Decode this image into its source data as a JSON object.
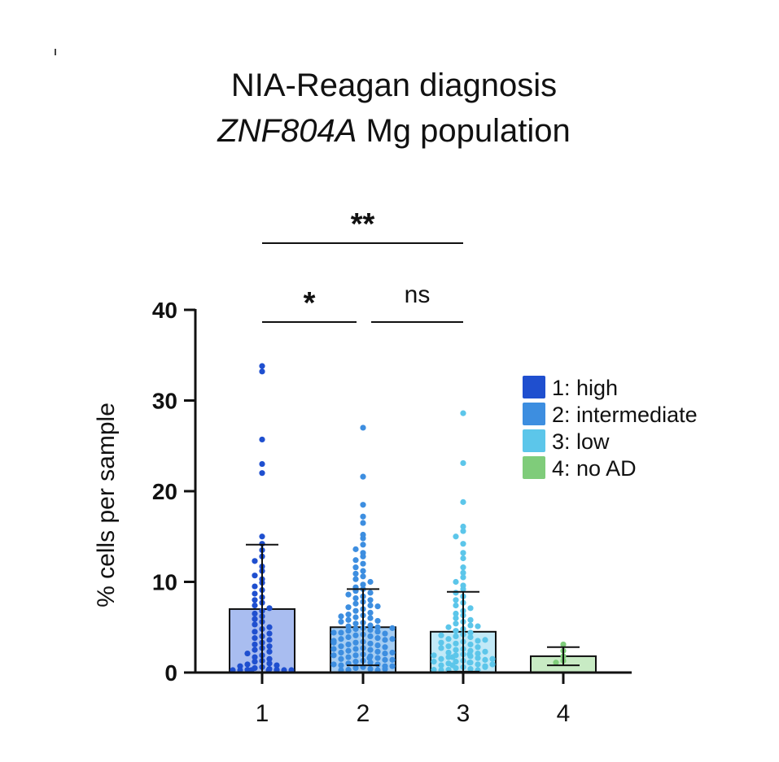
{
  "chart_data": {
    "type": "bar",
    "title_line1": "NIA-Reagan diagnosis",
    "title_gene": "ZNF804A",
    "title_rest": " Mg population",
    "ylabel": "% cells per sample",
    "xlabel": "",
    "ylim": [
      0,
      40
    ],
    "yticks": [
      0,
      10,
      20,
      30,
      40
    ],
    "ytick_labels": [
      "0",
      "10",
      "20",
      "30",
      "40"
    ],
    "categories": [
      "1",
      "2",
      "3",
      "4"
    ],
    "series": [
      {
        "name": "1: high",
        "category": "1",
        "mean": 7.0,
        "sd_upper": 14.1,
        "sd_lower": 0,
        "color": "#1f4fcf",
        "fill": "#a9bdf0",
        "points": [
          33.8,
          33.2,
          25.7,
          23.0,
          22.0,
          15.0,
          14.2,
          13.5,
          12.8,
          12.3,
          11.7,
          11.2,
          10.7,
          10.3,
          9.9,
          9.5,
          9.1,
          8.7,
          8.3,
          8.0,
          7.7,
          7.4,
          7.1,
          6.8,
          6.5,
          6.2,
          5.9,
          5.6,
          5.3,
          5.0,
          4.8,
          4.5,
          4.3,
          4.0,
          3.8,
          3.6,
          3.3,
          3.1,
          2.9,
          2.7,
          2.5,
          2.3,
          2.1,
          1.9,
          1.7,
          1.5,
          1.3,
          1.2,
          1.0,
          0.9,
          0.8,
          0.7,
          0.6,
          0.5,
          0.4,
          0.3,
          0.3,
          0.2,
          0.2,
          0.1,
          0.1,
          0.1,
          0.0,
          0.0
        ]
      },
      {
        "name": "2: intermediate",
        "category": "2",
        "mean": 5.0,
        "sd_upper": 9.2,
        "sd_lower": 0.8,
        "color": "#3d8ee0",
        "fill": "#a6cdf2",
        "points": [
          27.0,
          21.6,
          18.5,
          17.2,
          16.5,
          15.2,
          14.8,
          14.1,
          13.6,
          13.2,
          12.8,
          12.4,
          12.0,
          11.6,
          11.2,
          10.9,
          10.6,
          10.3,
          10.0,
          9.7,
          9.4,
          9.2,
          9.0,
          8.8,
          8.6,
          8.4,
          8.2,
          8.0,
          7.8,
          7.6,
          7.4,
          7.2,
          7.0,
          6.8,
          6.6,
          6.4,
          6.3,
          6.1,
          6.0,
          5.8,
          5.7,
          5.5,
          5.4,
          5.2,
          5.1,
          5.0,
          4.9,
          4.8,
          4.7,
          4.6,
          4.5,
          4.4,
          4.3,
          4.2,
          4.1,
          4.0,
          3.9,
          3.8,
          3.7,
          3.6,
          3.5,
          3.4,
          3.3,
          3.2,
          3.1,
          3.0,
          2.9,
          2.8,
          2.7,
          2.6,
          2.5,
          2.4,
          2.3,
          2.2,
          2.1,
          2.0,
          1.9,
          1.8,
          1.7,
          1.6,
          1.5,
          1.4,
          1.3,
          1.2,
          1.1,
          1.0,
          0.9,
          0.8,
          0.7,
          0.6,
          0.5,
          0.4,
          0.3,
          0.2,
          0.1,
          3.3,
          2.6,
          1.9,
          4.4,
          5.6,
          6.2,
          7.3,
          0.9,
          1.4,
          2.2,
          3.7,
          4.9,
          0.4,
          0.7,
          1.6
        ]
      },
      {
        "name": "3: low",
        "category": "3",
        "mean": 4.5,
        "sd_upper": 8.9,
        "sd_lower": 0.1,
        "color": "#5cc6ea",
        "fill": "#c2e9f7",
        "points": [
          28.6,
          23.1,
          18.8,
          16.1,
          15.6,
          15.0,
          14.2,
          13.2,
          12.6,
          11.6,
          11.0,
          10.5,
          10.0,
          9.6,
          9.2,
          8.8,
          8.4,
          8.0,
          7.7,
          7.4,
          7.1,
          6.8,
          6.5,
          6.3,
          6.0,
          5.8,
          5.6,
          5.4,
          5.2,
          5.0,
          4.8,
          4.6,
          4.4,
          4.2,
          4.0,
          3.9,
          3.7,
          3.5,
          3.4,
          3.2,
          3.1,
          2.9,
          2.8,
          2.6,
          2.5,
          2.4,
          2.2,
          2.1,
          2.0,
          1.9,
          1.8,
          1.7,
          1.6,
          1.5,
          1.4,
          1.3,
          1.2,
          1.1,
          1.0,
          0.9,
          0.8,
          0.7,
          0.6,
          0.5,
          0.4,
          0.3,
          0.2,
          0.1,
          2.7,
          1.9,
          3.3,
          1.2,
          0.6,
          2.3,
          4.1,
          1.5,
          0.9,
          3.6,
          2.0,
          1.1,
          0.3,
          5.1,
          0.8,
          1.7
        ]
      },
      {
        "name": "4: no AD",
        "category": "4",
        "mean": 1.8,
        "sd_upper": 2.8,
        "sd_lower": 0.8,
        "color": "#7fcc7a",
        "fill": "#c8ebc4",
        "points": [
          3.1,
          2.4,
          1.8,
          1.3,
          1.1
        ]
      }
    ],
    "significance": [
      {
        "from": "1",
        "to": "3",
        "label": "**"
      },
      {
        "from": "1",
        "to": "2",
        "label": "*"
      },
      {
        "from": "2",
        "to": "3",
        "label": "ns"
      }
    ],
    "legend": {
      "placement": "right",
      "entries": [
        "1: high",
        "2: intermediate",
        "3: low",
        "4: no AD"
      ]
    }
  }
}
